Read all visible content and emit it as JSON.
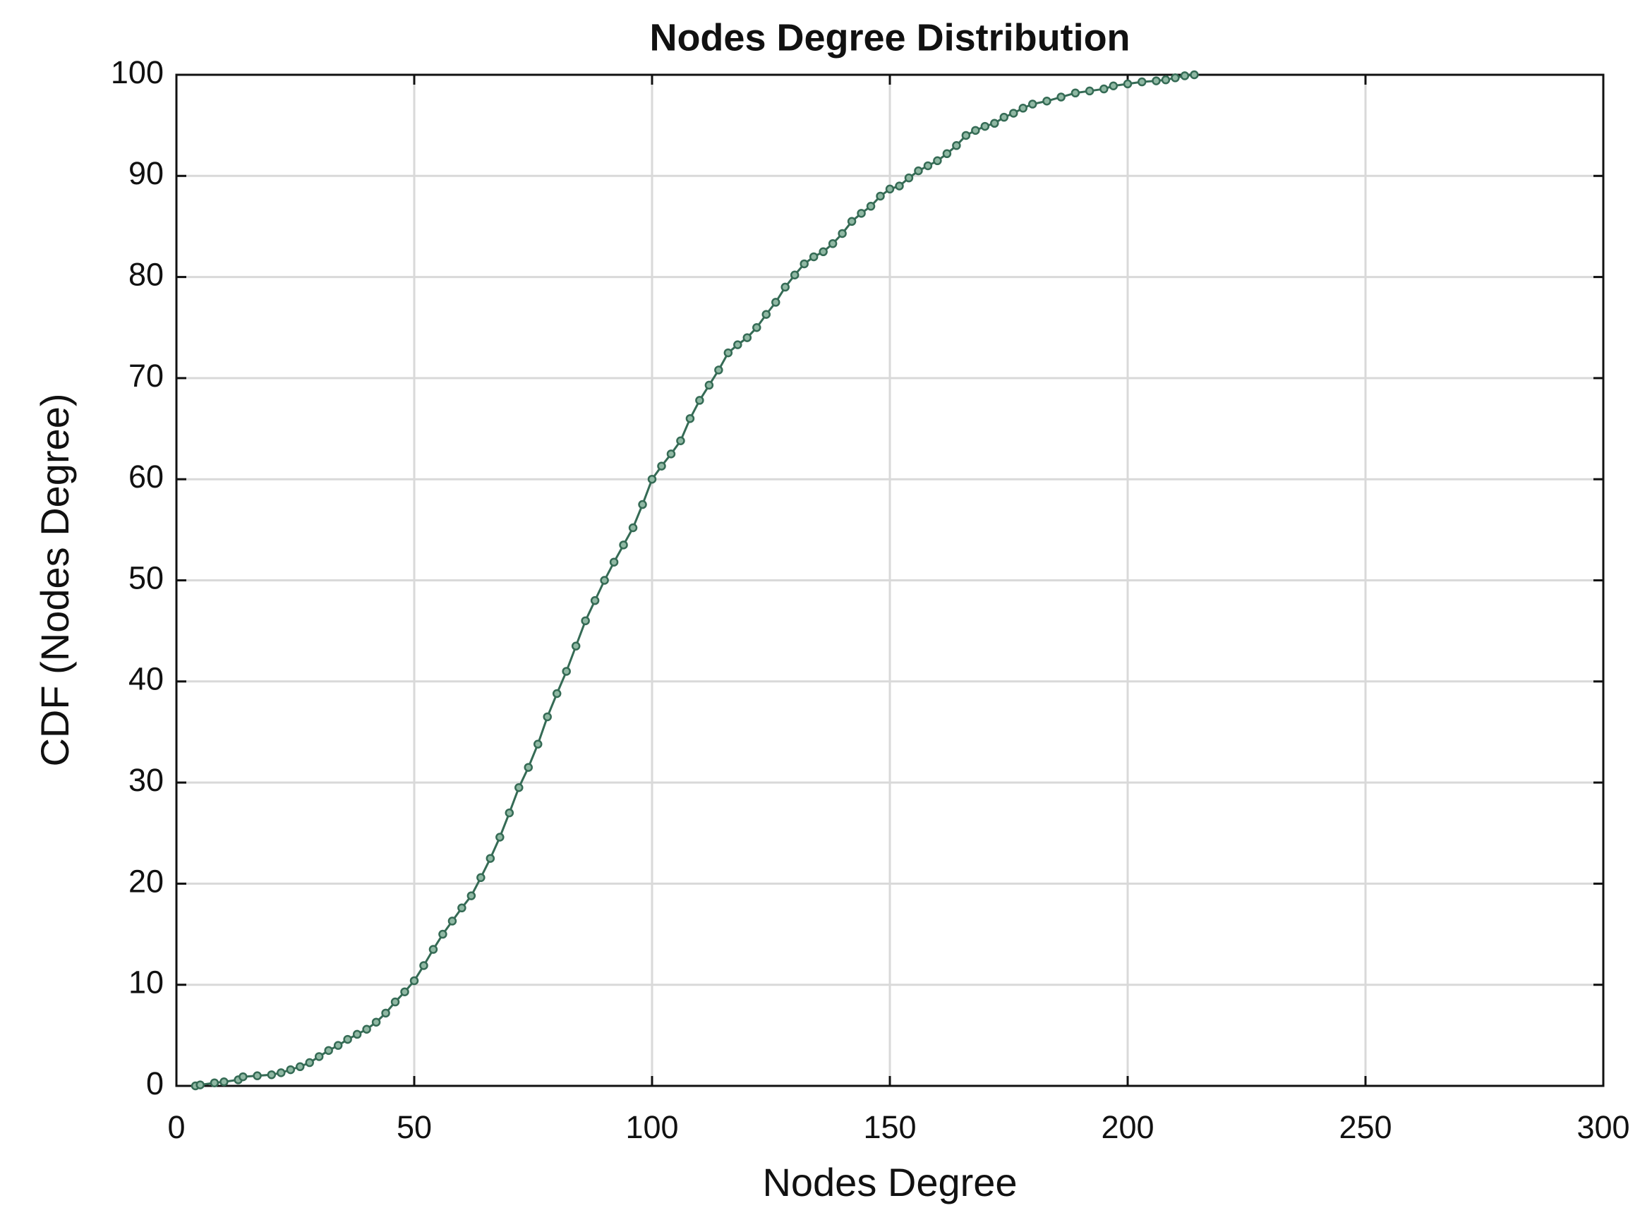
{
  "chart_data": {
    "type": "line",
    "title": "Nodes Degree Distribution",
    "xlabel": "Nodes Degree",
    "ylabel": "CDF (Nodes Degree)",
    "x": [
      4,
      5,
      8,
      10,
      13,
      14,
      17,
      20,
      22,
      24,
      26,
      28,
      30,
      32,
      34,
      36,
      38,
      40,
      42,
      44,
      46,
      48,
      50,
      52,
      54,
      56,
      58,
      60,
      62,
      64,
      66,
      68,
      70,
      72,
      74,
      76,
      78,
      80,
      82,
      84,
      86,
      88,
      90,
      92,
      94,
      96,
      98,
      100,
      102,
      104,
      106,
      108,
      110,
      112,
      114,
      116,
      118,
      120,
      122,
      124,
      126,
      128,
      130,
      132,
      134,
      136,
      138,
      140,
      142,
      144,
      146,
      148,
      150,
      152,
      154,
      156,
      158,
      160,
      162,
      164,
      166,
      168,
      170,
      172,
      174,
      176,
      178,
      180,
      183,
      186,
      189,
      192,
      195,
      197,
      200,
      203,
      206,
      208,
      210,
      212,
      214
    ],
    "values": [
      0,
      0.1,
      0.3,
      0.4,
      0.6,
      0.9,
      1.0,
      1.1,
      1.3,
      1.6,
      1.9,
      2.3,
      2.9,
      3.5,
      4.0,
      4.6,
      5.1,
      5.6,
      6.3,
      7.2,
      8.3,
      9.3,
      10.4,
      11.9,
      13.5,
      15.0,
      16.3,
      17.6,
      18.8,
      20.6,
      22.5,
      24.6,
      27.0,
      29.5,
      31.5,
      33.8,
      36.5,
      38.8,
      41.0,
      43.5,
      46.0,
      48.0,
      50.0,
      51.8,
      53.5,
      55.2,
      57.5,
      60.0,
      61.3,
      62.5,
      63.8,
      66.0,
      67.8,
      69.3,
      70.8,
      72.5,
      73.3,
      74.0,
      75.0,
      76.3,
      77.5,
      79.0,
      80.2,
      81.3,
      82.0,
      82.5,
      83.3,
      84.3,
      85.5,
      86.3,
      87.0,
      88.0,
      88.7,
      89.0,
      89.8,
      90.5,
      91.0,
      91.5,
      92.2,
      93.0,
      94.0,
      94.5,
      94.9,
      95.2,
      95.8,
      96.2,
      96.7,
      97.1,
      97.4,
      97.8,
      98.2,
      98.4,
      98.6,
      98.9,
      99.1,
      99.3,
      99.4,
      99.5,
      99.7,
      99.9,
      100
    ],
    "color": "#356b55",
    "marker_fill": "#8fb8a3",
    "xlim": [
      0,
      300
    ],
    "xticks": [
      0,
      50,
      100,
      150,
      200,
      250,
      300
    ],
    "ylim": [
      0,
      100
    ],
    "yticks": [
      0,
      10,
      20,
      30,
      40,
      50,
      60,
      70,
      80,
      90,
      100
    ],
    "grid": true
  }
}
